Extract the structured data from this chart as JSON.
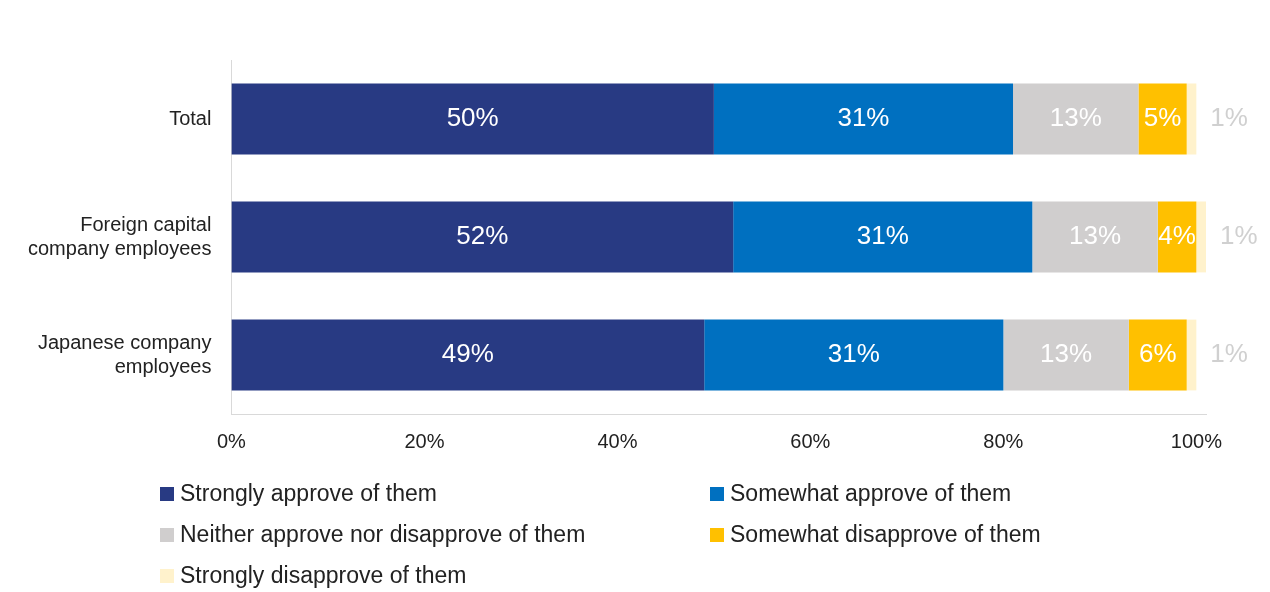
{
  "chart_data": {
    "type": "bar",
    "orientation": "horizontal",
    "stacked": true,
    "categories": [
      "Total",
      "Foreign capital\ncompany employees",
      "Japanese company\nemployees"
    ],
    "series": [
      {
        "name": "Strongly approve of them",
        "color": "#283a83",
        "values": [
          50,
          52,
          49
        ],
        "value_labels": [
          "50%",
          "52%",
          "49%"
        ]
      },
      {
        "name": "Somewhat approve of them",
        "color": "#0070c0",
        "values": [
          31,
          31,
          31
        ],
        "value_labels": [
          "31%",
          "31%",
          "31%"
        ]
      },
      {
        "name": "Neither approve nor disapprove of them",
        "color": "#d0cece",
        "values": [
          13,
          13,
          13
        ],
        "value_labels": [
          "13%",
          "13%",
          "13%"
        ]
      },
      {
        "name": "Somewhat disapprove of them",
        "color": "#ffc000",
        "values": [
          5,
          4,
          6
        ],
        "value_labels": [
          "5%",
          "4%",
          "6%"
        ]
      },
      {
        "name": "Strongly disapprove of them",
        "color": "#fff2cc",
        "values": [
          1,
          1,
          1
        ],
        "value_labels": [
          "1%",
          "1%",
          "1%"
        ]
      }
    ],
    "xlim": [
      0,
      101
    ],
    "xticks": [
      {
        "value": 0,
        "label": "0%"
      },
      {
        "value": 20,
        "label": "20%"
      },
      {
        "value": 40,
        "label": "40%"
      },
      {
        "value": 60,
        "label": "60%"
      },
      {
        "value": 80,
        "label": "80%"
      },
      {
        "value": 100,
        "label": "100%"
      }
    ],
    "grid": false,
    "legend": "bottom"
  }
}
